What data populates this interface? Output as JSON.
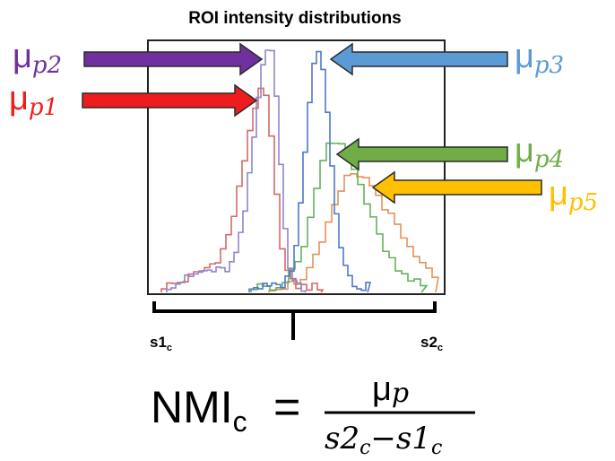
{
  "title": "ROI intensity distributions",
  "series": [
    {
      "id": "p1",
      "mu": "μ",
      "sub": "p1",
      "color": "#ee1c1c",
      "line": "#d46a6a"
    },
    {
      "id": "p2",
      "mu": "μ",
      "sub": "p2",
      "color": "#7030a0",
      "line": "#8f86c9"
    },
    {
      "id": "p3",
      "mu": "μ",
      "sub": "p3",
      "color": "#5b9bd5",
      "line": "#4f79c9"
    },
    {
      "id": "p4",
      "mu": "μ",
      "sub": "p4",
      "color": "#70ad47",
      "line": "#63b35a"
    },
    {
      "id": "p5",
      "mu": "μ",
      "sub": "p5",
      "color": "#ffc000",
      "line": "#e3935a"
    }
  ],
  "axis": {
    "s1_label": "s1",
    "s1_sub": "c",
    "s2_label": "s2",
    "s2_sub": "c"
  },
  "formula": {
    "lhs": "NMI",
    "lhs_sub": "c",
    "eq": "=",
    "numerator_mu": "μ",
    "numerator_sub": "p",
    "den_a": "s2",
    "den_a_sub": "c",
    "den_minus": "−",
    "den_b": "s1",
    "den_b_sub": "c"
  }
}
